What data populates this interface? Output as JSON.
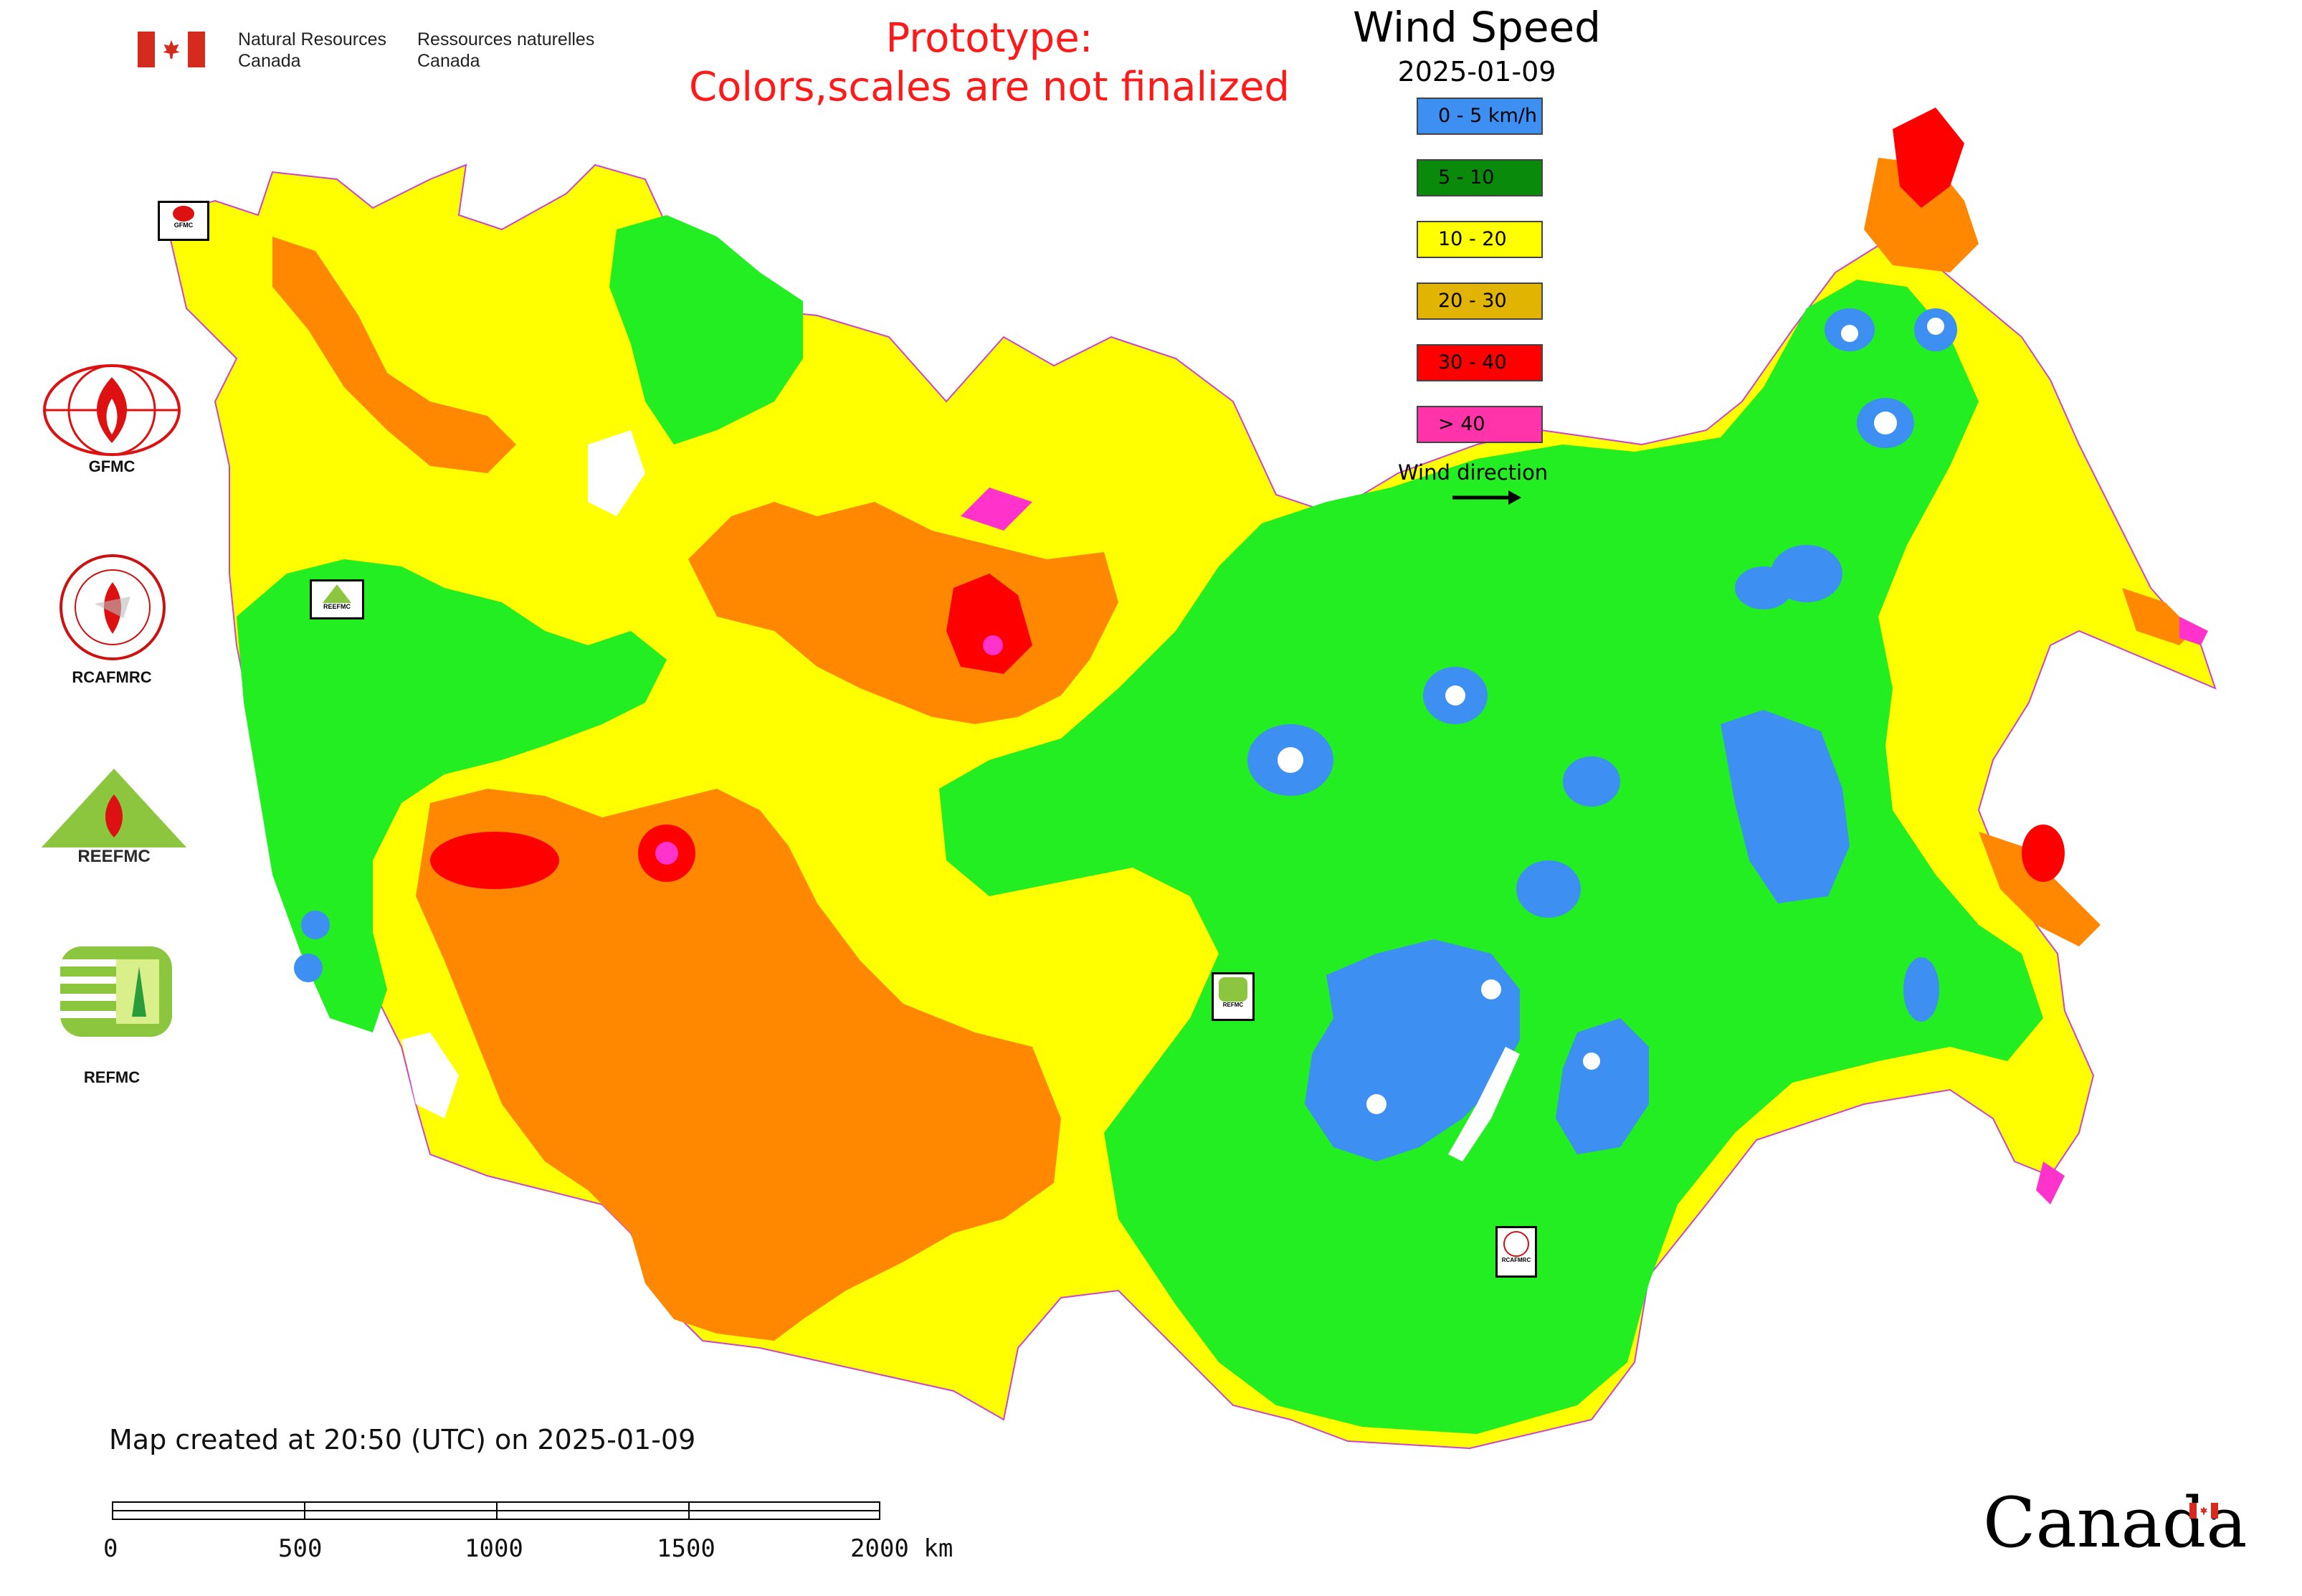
{
  "header": {
    "agency_en_line1": "Natural Resources",
    "agency_en_line2": "Canada",
    "agency_fr_line1": "Ressources naturelles",
    "agency_fr_line2": "Canada",
    "prototype_line1": "Prototype:",
    "prototype_line2": "Colors,scales are not finalized"
  },
  "legend": {
    "title": "Wind Speed",
    "date": "2025-01-09",
    "items": [
      {
        "label": "0 - 5 km/h",
        "color": "#3d8ff2"
      },
      {
        "label": "5 - 10",
        "color": "#0a8a0a"
      },
      {
        "label": "10 - 20",
        "color": "#ffff00"
      },
      {
        "label": "20 - 30",
        "color": "#e0b400"
      },
      {
        "label": "30 - 40",
        "color": "#ff0000"
      },
      {
        "label": "> 40",
        "color": "#ff33aa"
      }
    ],
    "wind_direction_label": "Wind direction"
  },
  "organizations": [
    {
      "label": "GFMC"
    },
    {
      "label": "RCAFMRC"
    },
    {
      "label": "REEFMC"
    },
    {
      "label": "REFMC"
    }
  ],
  "map_badges": {
    "gfmc": "GFMC",
    "reefmc": "REEFMC",
    "refmc": "REFMC",
    "rcafmrc": "RCAFMRC"
  },
  "map_colors": {
    "zone_0_5": "#3d8ff2",
    "zone_5_10": "#22ee22",
    "zone_10_20": "#ffff00",
    "zone_20_30": "#ff8800",
    "zone_30_40": "#ff0000",
    "zone_over_40": "#ff33cc"
  },
  "footer": {
    "created_text": "Map created at 20:50 (UTC) on 2025-01-09",
    "scale_ticks": [
      "0",
      "500",
      "1000",
      "1500",
      "2000 km"
    ],
    "wordmark": "Canada"
  }
}
